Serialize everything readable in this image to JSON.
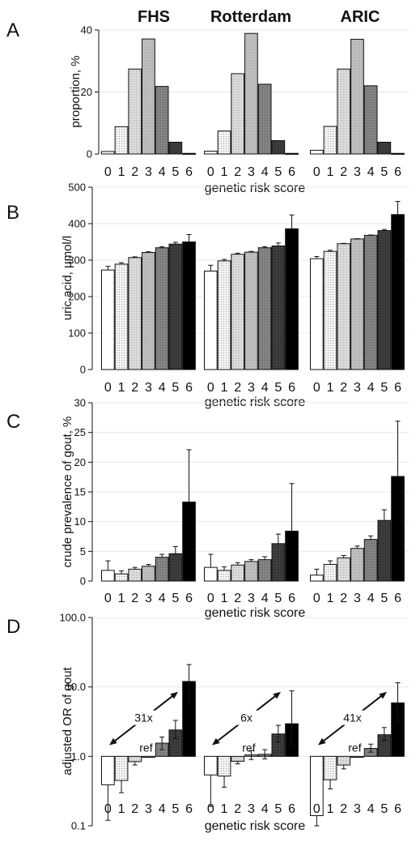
{
  "studies": [
    "FHS",
    "Rotterdam",
    "ARIC"
  ],
  "categories": [
    "0",
    "1",
    "2",
    "3",
    "4",
    "5",
    "6"
  ],
  "colors": [
    "#ffffff",
    "#e4e4e4",
    "#d2d2d2",
    "#b8b8b8",
    "#8a8a8a",
    "#3c3c3c",
    "#000000"
  ],
  "chart_data": [
    {
      "panel": "A",
      "type": "bar",
      "ylabel": "proportion, %",
      "xlabel": "genetic risk score",
      "ylim": [
        0,
        40
      ],
      "yticks": [
        "0",
        "20",
        "40"
      ],
      "categories": [
        "0",
        "1",
        "2",
        "3",
        "4",
        "5",
        "6"
      ],
      "grid": "horizontal",
      "series": [
        {
          "name": "FHS",
          "values": [
            0.8,
            8.8,
            27.4,
            37.1,
            21.8,
            3.8,
            0.2
          ]
        },
        {
          "name": "Rotterdam",
          "values": [
            0.9,
            7.4,
            25.9,
            38.9,
            22.5,
            4.3,
            0.2
          ]
        },
        {
          "name": "ARIC",
          "values": [
            1.2,
            8.9,
            27.4,
            37.0,
            22.0,
            3.8,
            0.2
          ]
        }
      ]
    },
    {
      "panel": "B",
      "type": "bar",
      "ylabel": "uric acid, µmol/l",
      "xlabel": "genetic risk score",
      "ylim": [
        0,
        500
      ],
      "yticks": [
        "0",
        "100",
        "200",
        "300",
        "400",
        "500"
      ],
      "categories": [
        "0",
        "1",
        "2",
        "3",
        "4",
        "5",
        "6"
      ],
      "grid": "horizontal",
      "series": [
        {
          "name": "FHS",
          "values": [
            273,
            289,
            307,
            321,
            334,
            344,
            350
          ],
          "errors": [
            10,
            4,
            2,
            2,
            3,
            5,
            20
          ]
        },
        {
          "name": "Rotterdam",
          "values": [
            270,
            298,
            316,
            322,
            334,
            339,
            386
          ],
          "errors": [
            16,
            4,
            3,
            2,
            3,
            8,
            38
          ]
        },
        {
          "name": "ARIC",
          "values": [
            304,
            324,
            345,
            358,
            368,
            381,
            425
          ],
          "errors": [
            6,
            3,
            1,
            1,
            1,
            3,
            36
          ]
        }
      ]
    },
    {
      "panel": "C",
      "type": "bar",
      "ylabel": "crude prevalence of gout, %",
      "xlabel": "genetic risk score",
      "ylim": [
        0,
        30
      ],
      "yticks": [
        "0",
        "5",
        "10",
        "15",
        "20",
        "25",
        "30"
      ],
      "categories": [
        "0",
        "1",
        "2",
        "3",
        "4",
        "5",
        "6"
      ],
      "grid": "horizontal",
      "series": [
        {
          "name": "FHS",
          "values": [
            1.8,
            1.2,
            2.0,
            2.5,
            4.0,
            4.6,
            13.3
          ],
          "errors": [
            1.6,
            0.5,
            0.3,
            0.3,
            0.5,
            1.2,
            8.8
          ]
        },
        {
          "name": "Rotterdam",
          "values": [
            2.3,
            1.8,
            2.7,
            3.3,
            3.6,
            6.3,
            8.4
          ],
          "errors": [
            2.2,
            0.6,
            0.4,
            0.3,
            0.5,
            1.6,
            8.0
          ]
        },
        {
          "name": "ARIC",
          "values": [
            1.0,
            2.8,
            3.9,
            5.5,
            7.0,
            10.2,
            17.6
          ],
          "errors": [
            1.0,
            0.6,
            0.4,
            0.4,
            0.6,
            1.8,
            9.3
          ]
        }
      ]
    },
    {
      "panel": "D",
      "type": "bar",
      "ylabel": "adjusted OR of gout",
      "xlabel": "genetic risk score",
      "yscale": "log",
      "ylim": [
        0.1,
        100
      ],
      "yticks": [
        "0.1",
        "1.0",
        "10.0",
        "100.0"
      ],
      "categories": [
        "0",
        "1",
        "2",
        "3",
        "4",
        "5",
        "6"
      ],
      "reference": "ref",
      "reference_category": "3",
      "grid": "horizontal",
      "series": [
        {
          "name": "FHS",
          "values": [
            0.39,
            0.45,
            0.84,
            1.0,
            1.55,
            2.4,
            12.0
          ],
          "ci_lower": [
            0.12,
            0.3,
            0.75,
            null,
            1.25,
            1.8,
            6.0
          ],
          "ci_upper": [
            null,
            null,
            null,
            null,
            1.9,
            3.3,
            21.0
          ]
        },
        {
          "name": "Rotterdam",
          "values": [
            0.54,
            0.52,
            0.85,
            1.05,
            1.07,
            2.1,
            2.95
          ],
          "ci_lower": [
            0.19,
            0.36,
            0.78,
            0.9,
            0.92,
            1.6,
            1.5
          ],
          "ci_upper": [
            null,
            null,
            null,
            1.22,
            1.25,
            2.8,
            8.8
          ]
        },
        {
          "name": "ARIC",
          "values": [
            0.14,
            0.46,
            0.75,
            1.0,
            1.3,
            2.05,
            5.9
          ],
          "ci_lower": [
            0.1,
            0.34,
            0.66,
            null,
            1.15,
            1.7,
            3.3
          ],
          "ci_upper": [
            null,
            null,
            null,
            null,
            1.5,
            2.6,
            11.5
          ]
        }
      ],
      "annotations": [
        "31x",
        "6x",
        "41x"
      ]
    }
  ]
}
